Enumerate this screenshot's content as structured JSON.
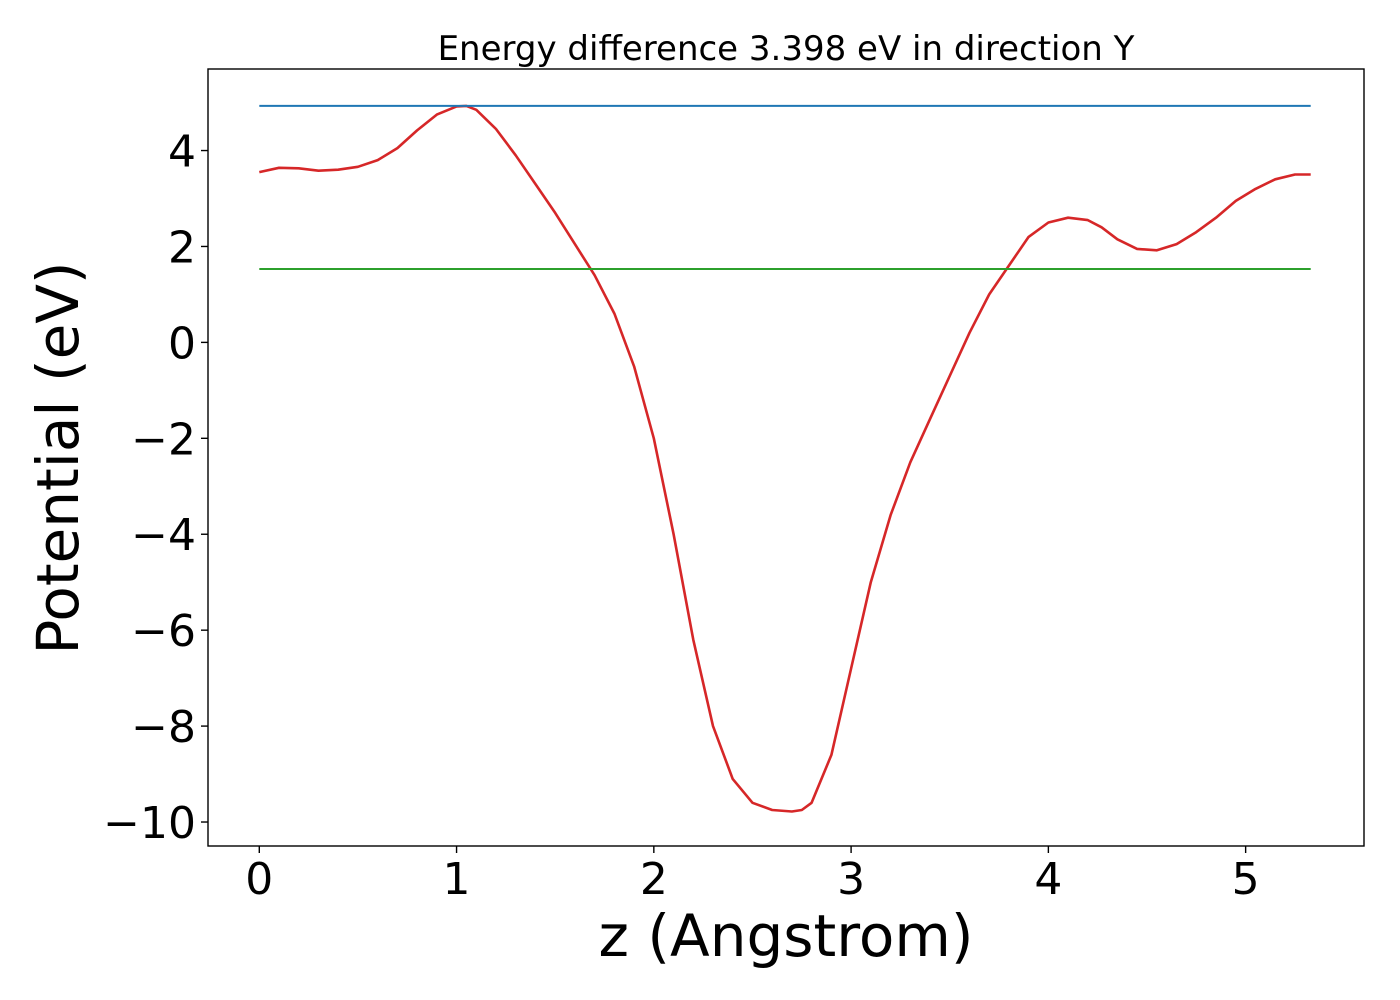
{
  "chart_data": {
    "type": "line",
    "title": "Energy difference 3.398 eV in direction Y",
    "xlabel": "z (Angstrom)",
    "ylabel": "Potential (eV)",
    "xlim": [
      -0.26,
      5.6
    ],
    "ylim": [
      -10.5,
      5.7
    ],
    "xticks": [
      0,
      1,
      2,
      3,
      4,
      5
    ],
    "xtick_labels": [
      "0",
      "1",
      "2",
      "3",
      "4",
      "5"
    ],
    "yticks": [
      -10,
      -8,
      -6,
      -4,
      -2,
      0,
      2,
      4
    ],
    "ytick_labels": [
      "−10",
      "−8",
      "−6",
      "−4",
      "−2",
      "0",
      "2",
      "4"
    ],
    "grid": false,
    "legend": "none",
    "series": [
      {
        "color": "#d62728",
        "x": [
          0.0,
          0.1,
          0.2,
          0.3,
          0.4,
          0.5,
          0.6,
          0.7,
          0.8,
          0.9,
          1.0,
          1.05,
          1.1,
          1.2,
          1.3,
          1.4,
          1.5,
          1.6,
          1.7,
          1.8,
          1.9,
          2.0,
          2.1,
          2.2,
          2.3,
          2.4,
          2.5,
          2.6,
          2.7,
          2.75,
          2.8,
          2.9,
          3.0,
          3.1,
          3.2,
          3.3,
          3.4,
          3.5,
          3.6,
          3.7,
          3.8,
          3.9,
          4.0,
          4.1,
          4.2,
          4.27,
          4.35,
          4.45,
          4.55,
          4.65,
          4.75,
          4.85,
          4.95,
          5.05,
          5.15,
          5.25,
          5.33
        ],
        "y": [
          3.55,
          3.64,
          3.63,
          3.58,
          3.6,
          3.66,
          3.8,
          4.05,
          4.42,
          4.75,
          4.92,
          4.93,
          4.85,
          4.45,
          3.9,
          3.3,
          2.7,
          2.05,
          1.4,
          0.6,
          -0.5,
          -2.0,
          -4.0,
          -6.2,
          -8.0,
          -9.1,
          -9.6,
          -9.75,
          -9.78,
          -9.75,
          -9.6,
          -8.6,
          -6.8,
          -5.0,
          -3.6,
          -2.5,
          -1.6,
          -0.7,
          0.2,
          1.0,
          1.6,
          2.2,
          2.5,
          2.6,
          2.55,
          2.4,
          2.15,
          1.95,
          1.92,
          2.05,
          2.3,
          2.6,
          2.95,
          3.2,
          3.4,
          3.5,
          3.5
        ]
      },
      {
        "color": "#1f77b4",
        "x": [
          0.0,
          5.33
        ],
        "y": [
          4.93,
          4.93
        ]
      },
      {
        "color": "#2ca02c",
        "x": [
          0.0,
          5.33
        ],
        "y": [
          1.53,
          1.53
        ]
      }
    ]
  }
}
